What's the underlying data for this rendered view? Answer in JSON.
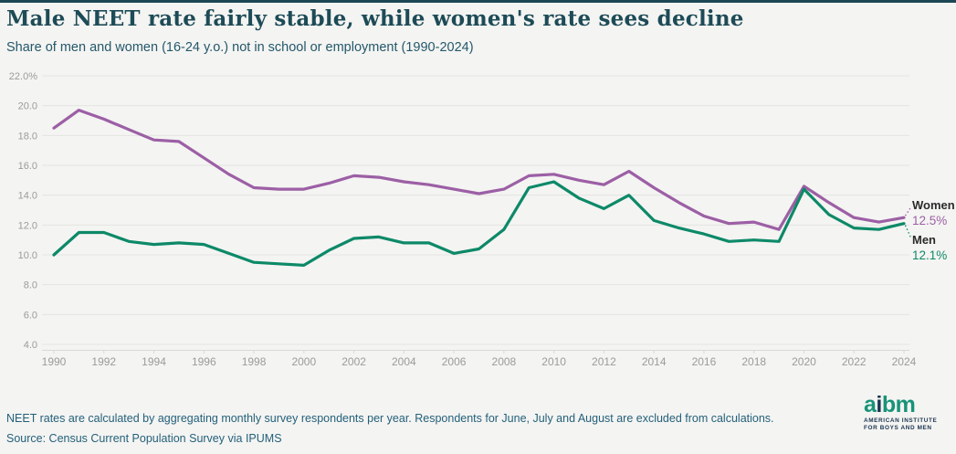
{
  "page": {
    "background_color": "#f4f4f2",
    "top_bar_color": "#1c4653"
  },
  "header": {
    "title": "Male NEET rate fairly stable, while women's rate sees decline",
    "subtitle": "Share of men and women (16-24 y.o.) not in school or employment (1990-2024)"
  },
  "chart_data": {
    "type": "line",
    "title": "Male NEET rate fairly stable, while women's rate sees decline",
    "subtitle": "Share of men and women (16-24 y.o.) not in school or employment (1990-2024)",
    "x": [
      1990,
      1991,
      1992,
      1993,
      1994,
      1995,
      1996,
      1997,
      1998,
      1999,
      2000,
      2001,
      2002,
      2003,
      2004,
      2005,
      2006,
      2007,
      2008,
      2009,
      2010,
      2011,
      2012,
      2013,
      2014,
      2015,
      2016,
      2017,
      2018,
      2019,
      2020,
      2021,
      2022,
      2023,
      2024
    ],
    "series": [
      {
        "name": "Women",
        "color": "#9c5fa5",
        "end_label": "Women",
        "end_value_label": "12.5%",
        "values": [
          18.5,
          19.7,
          19.1,
          18.4,
          17.7,
          17.6,
          16.5,
          15.4,
          14.5,
          14.4,
          14.4,
          14.8,
          15.3,
          15.2,
          14.9,
          14.7,
          14.4,
          14.1,
          14.4,
          15.3,
          15.4,
          15.0,
          14.7,
          15.6,
          14.5,
          13.5,
          12.6,
          12.1,
          12.2,
          11.7,
          14.6,
          13.5,
          12.5,
          12.2,
          12.5
        ]
      },
      {
        "name": "Men",
        "color": "#0d8968",
        "end_label": "Men",
        "end_value_label": "12.1%",
        "values": [
          10.0,
          11.5,
          11.5,
          10.9,
          10.7,
          10.8,
          10.7,
          10.1,
          9.5,
          9.4,
          9.3,
          10.3,
          11.1,
          11.2,
          10.8,
          10.8,
          10.1,
          10.4,
          11.7,
          14.5,
          14.9,
          13.8,
          13.1,
          14.0,
          12.3,
          11.8,
          11.4,
          10.9,
          11.0,
          10.9,
          14.4,
          12.7,
          11.8,
          11.7,
          12.1
        ]
      }
    ],
    "ylim": [
      4.0,
      22.0
    ],
    "ytick_values": [
      22,
      20,
      18,
      16,
      14,
      12,
      10,
      8,
      6,
      4
    ],
    "ytick_labels": [
      "22.0%",
      "20.0",
      "18.0",
      "16.0",
      "14.0",
      "12.0",
      "10.0",
      "8.0",
      "6.0",
      "4.0"
    ],
    "xtick_labels": [
      "1990",
      "1992",
      "1994",
      "1996",
      "1998",
      "2000",
      "2002",
      "2004",
      "2006",
      "2008",
      "2010",
      "2012",
      "2014",
      "2016",
      "2018",
      "2020",
      "2022",
      "2024"
    ],
    "grid": "horizontal",
    "legend_position": "right-end-labels",
    "colors": {
      "grid": "#e4e4e1",
      "axis": "#d9d9d6",
      "tick_text": "#9b9b99"
    }
  },
  "footer": {
    "note": "NEET rates are calculated by aggregating monthly survey respondents per year. Respondents for June, July and August are excluded from calculations.",
    "source": "Source: Census Current Population Survey via IPUMS"
  },
  "logo": {
    "word": [
      {
        "ch": "a",
        "color": "#189378"
      },
      {
        "ch": "i",
        "color": "#1b3450"
      },
      {
        "ch": "b",
        "color": "#189378"
      },
      {
        "ch": "m",
        "color": "#189378"
      }
    ],
    "tagline_line1": "AMERICAN INSTITUTE",
    "tagline_line2": "FOR BOYS AND MEN"
  }
}
